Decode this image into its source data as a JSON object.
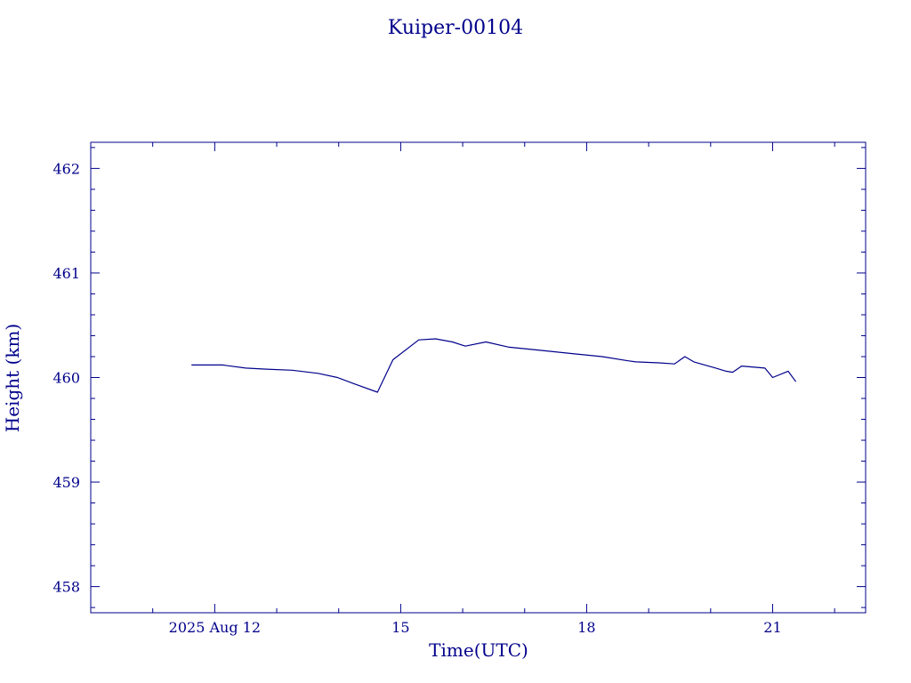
{
  "chart_data": {
    "type": "line",
    "title": "Kuiper-00104",
    "xlabel": "Time(UTC)",
    "ylabel": "Height (km)",
    "xlim": [
      "2025-08-10T00:00",
      "2025-08-22T12:00"
    ],
    "ylim": [
      457.75,
      462.25
    ],
    "x_ticks": [
      {
        "value": "2025-08-12T00:00",
        "label": "2025 Aug 12"
      },
      {
        "value": "2025-08-15T00:00",
        "label": "15"
      },
      {
        "value": "2025-08-18T00:00",
        "label": "18"
      },
      {
        "value": "2025-08-21T00:00",
        "label": "21"
      }
    ],
    "y_ticks": [
      458,
      459,
      460,
      461,
      462
    ],
    "grid": false,
    "color": "#00008b",
    "series": [
      {
        "x": [
          "2025-08-11T15:00",
          "2025-08-11T18:00",
          "2025-08-12T03:00",
          "2025-08-12T12:00",
          "2025-08-12T20:00",
          "2025-08-13T06:00",
          "2025-08-13T16:00",
          "2025-08-13T23:30",
          "2025-08-14T06:00",
          "2025-08-14T15:00",
          "2025-08-14T21:00",
          "2025-08-15T07:00",
          "2025-08-15T13:30",
          "2025-08-15T20:00",
          "2025-08-16T01:00",
          "2025-08-16T09:00",
          "2025-08-16T18:00",
          "2025-08-17T06:00",
          "2025-08-17T18:00",
          "2025-08-18T06:00",
          "2025-08-18T16:00",
          "2025-08-18T19:00",
          "2025-08-19T04:00",
          "2025-08-19T10:00",
          "2025-08-19T14:00",
          "2025-08-19T17:30",
          "2025-08-20T02:00",
          "2025-08-20T06:00",
          "2025-08-20T08:30",
          "2025-08-20T12:00",
          "2025-08-20T21:00",
          "2025-08-21T00:00",
          "2025-08-21T06:00",
          "2025-08-21T09:00"
        ],
        "y": [
          460.12,
          460.12,
          460.12,
          460.09,
          460.08,
          460.07,
          460.04,
          460.0,
          459.94,
          459.86,
          460.17,
          460.36,
          460.37,
          460.34,
          460.3,
          460.34,
          460.29,
          460.26,
          460.23,
          460.2,
          460.16,
          460.15,
          460.14,
          460.13,
          460.2,
          460.15,
          460.09,
          460.06,
          460.05,
          460.11,
          460.09,
          460.0,
          460.06,
          459.96
        ]
      }
    ]
  }
}
